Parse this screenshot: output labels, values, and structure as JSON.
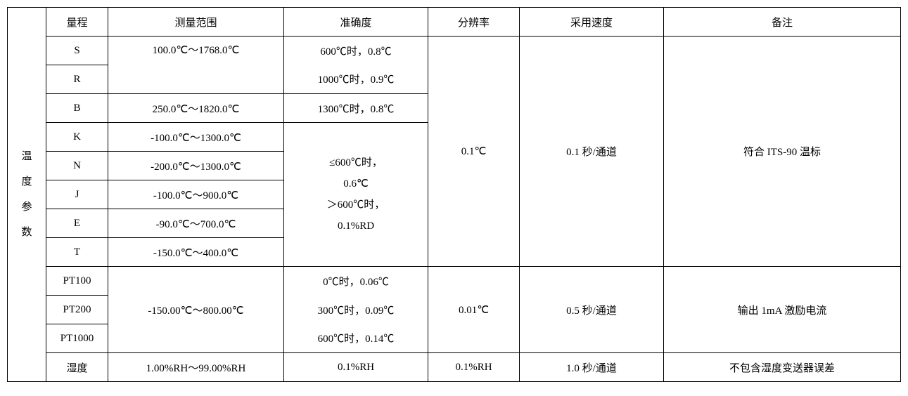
{
  "table": {
    "sideLabel": "温 度 参 数",
    "headers": [
      "量程",
      "测量范围",
      "准确度",
      "分辨率",
      "采用速度",
      "备注"
    ],
    "section1": {
      "ranges": [
        "S",
        "R",
        "B",
        "K",
        "N",
        "J",
        "E",
        "T"
      ],
      "measureRanges": {
        "s": "100.0℃～1768.0℃",
        "r": "",
        "b": "250.0℃～1820.0℃",
        "k": "-100.0℃～1300.0℃",
        "n": "-200.0℃～1300.0℃",
        "j": "-100.0℃～900.0℃",
        "e": "-90.0℃～700.0℃",
        "t": "-150.0℃～400.0℃"
      },
      "accuracy": {
        "line1": "600℃时，0.8℃",
        "line2": "1000℃时，0.9℃",
        "line3": "1300℃时，0.8℃",
        "line4": "≤600℃时，",
        "line5": "0.6℃",
        "line6": "＞600℃时，",
        "line7": "0.1%RD"
      },
      "resolution": "0.1℃",
      "speed": "0.1 秒/通道",
      "remark": "符合 ITS-90 温标"
    },
    "section2": {
      "ranges": [
        "PT100",
        "PT200",
        "PT1000"
      ],
      "measureRange": "-150.00℃～800.00℃",
      "accuracy": {
        "line1": "0℃时，0.06℃",
        "line2": "300℃时，0.09℃",
        "line3": "600℃时，0.14℃"
      },
      "resolution": "0.01℃",
      "speed": "0.5 秒/通道",
      "remark": "输出 1mA 激励电流"
    },
    "section3": {
      "range": "湿度",
      "measureRange": "1.00%RH～99.00%RH",
      "accuracy": "0.1%RH",
      "resolution": "0.1%RH",
      "speed": "1.0 秒/通道",
      "remark": "不包含湿度变送器误差"
    }
  }
}
